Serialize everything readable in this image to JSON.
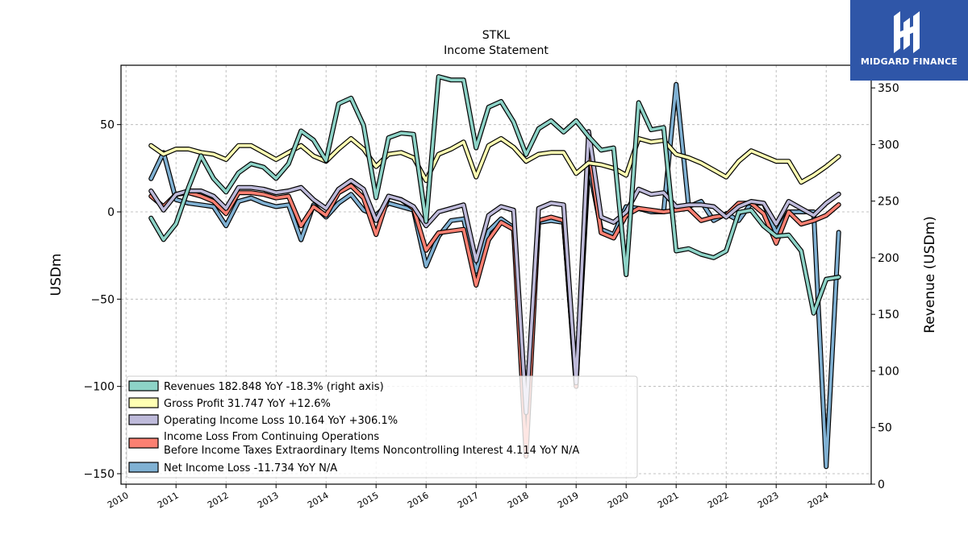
{
  "brand": {
    "name": "MIDGARD FINANCE"
  },
  "chart_data": {
    "type": "line",
    "title": "STKL",
    "subtitle": "Income Statement",
    "ylabel_left": "USDm",
    "ylabel_right": "Revenue (USDm)",
    "ylim_left": [
      -156,
      84
    ],
    "ylim_right": [
      0,
      370
    ],
    "yticks_left": [
      50,
      0,
      -50,
      -100,
      -150
    ],
    "ytick_labels_left": [
      "50",
      "0",
      "−50",
      "−100",
      "−150"
    ],
    "yticks_right": [
      0,
      50,
      100,
      150,
      200,
      250,
      300,
      350
    ],
    "ytick_labels_right": [
      "0",
      "50",
      "100",
      "150",
      "200",
      "250",
      "300",
      "350"
    ],
    "xlim": [
      2009.9,
      2024.9
    ],
    "xticks": [
      "2010",
      "2011",
      "2012",
      "2013",
      "2014",
      "2015",
      "2016",
      "2017",
      "2018",
      "2019",
      "2020",
      "2021",
      "2022",
      "2023",
      "2024"
    ],
    "grid": true,
    "legend_position": "lower-left",
    "x": [
      2010.5,
      2010.75,
      2011.0,
      2011.25,
      2011.5,
      2011.75,
      2012.0,
      2012.25,
      2012.5,
      2012.75,
      2013.0,
      2013.25,
      2013.5,
      2013.75,
      2014.0,
      2014.25,
      2014.5,
      2014.75,
      2015.0,
      2015.25,
      2015.5,
      2015.75,
      2016.0,
      2016.25,
      2016.5,
      2016.75,
      2017.0,
      2017.25,
      2017.5,
      2017.75,
      2018.0,
      2018.25,
      2018.5,
      2018.75,
      2019.0,
      2019.25,
      2019.5,
      2019.75,
      2020.0,
      2020.25,
      2020.5,
      2020.75,
      2021.0,
      2021.25,
      2021.5,
      2021.75,
      2022.0,
      2022.25,
      2022.5,
      2022.75,
      2023.0,
      2023.25,
      2023.5,
      2023.75,
      2024.0,
      2024.25
    ],
    "series": [
      {
        "name": "Revenues",
        "legend": "Revenues  182.848 YoY -18.3% (right axis)",
        "axis": "right",
        "color": "#8dd3c7",
        "values": [
          235,
          216,
          230,
          262,
          290,
          270,
          258,
          275,
          283,
          280,
          270,
          283,
          312,
          304,
          286,
          336,
          341,
          317,
          253,
          306,
          310,
          309,
          232,
          360,
          357,
          357,
          297,
          333,
          338,
          320,
          291,
          314,
          321,
          311,
          321,
          307,
          295,
          297,
          185,
          337,
          313,
          315,
          206,
          208,
          203,
          200,
          206,
          240,
          242,
          228,
          219,
          220,
          206,
          151,
          181,
          182.848
        ]
      },
      {
        "name": "Gross Profit",
        "legend": "Gross Profit  31.747 YoY +12.6%",
        "axis": "left",
        "color": "#ffffb3",
        "values": [
          38,
          33,
          36,
          36,
          34,
          33,
          30,
          38,
          38,
          34,
          30,
          34,
          38,
          32,
          29,
          36,
          42,
          36,
          26,
          33,
          34,
          31,
          18,
          33,
          36,
          40,
          20,
          38,
          42,
          37,
          29,
          33,
          34,
          34,
          22,
          28,
          27,
          25,
          21,
          42,
          40,
          41,
          33,
          31,
          28,
          24,
          20,
          29,
          35,
          32,
          29,
          29,
          17,
          21,
          26,
          31.747
        ]
      },
      {
        "name": "Operating Income Loss",
        "legend": "Operating Income Loss  10.164 YoY +306.1%",
        "axis": "left",
        "color": "#bebada",
        "values": [
          12,
          1,
          10,
          12,
          12,
          9,
          2,
          14,
          14,
          13,
          11,
          12,
          14,
          7,
          2,
          13,
          18,
          13,
          -5,
          9,
          7,
          3,
          -8,
          0,
          2,
          4,
          -28,
          -2,
          3,
          1,
          -115,
          2,
          5,
          4,
          -98,
          46,
          -3,
          -6,
          0,
          13,
          10,
          11,
          3,
          4,
          4,
          3,
          -3,
          3,
          6,
          5,
          -7,
          6,
          2,
          -2,
          5,
          10.164
        ]
      },
      {
        "name": "Income Loss From Continuing Operations Before Income Taxes Extraordinary Items Noncontrolling Interest",
        "legend": "Income Loss From Continuing Operations",
        "legend2": "Before Income Taxes Extraordinary Items Noncontrolling Interest  4.114 YoY N/A",
        "axis": "left",
        "color": "#fb8072",
        "values": [
          9,
          3,
          10,
          11,
          9,
          6,
          -1,
          11,
          11,
          10,
          8,
          9,
          -8,
          3,
          -2,
          11,
          15,
          8,
          -13,
          9,
          7,
          2,
          -22,
          -12,
          -11,
          -10,
          -42,
          -16,
          -6,
          -10,
          -140,
          -5,
          -3,
          -5,
          -100,
          36,
          -12,
          -15,
          -2,
          2,
          1,
          0,
          1,
          2,
          -5,
          -3,
          -2,
          5,
          5,
          -1,
          -18,
          0,
          -7,
          -5,
          -2,
          4.114
        ]
      },
      {
        "name": "Net Income Loss",
        "legend": "Net Income Loss  -11.734 YoY N/A",
        "axis": "left",
        "color": "#80b1d3",
        "values": [
          19,
          34,
          7,
          5,
          4,
          3,
          -8,
          6,
          8,
          5,
          3,
          4,
          -16,
          4,
          -3,
          5,
          10,
          1,
          -2,
          5,
          3,
          1,
          -31,
          -14,
          -5,
          -4,
          -34,
          -11,
          -4,
          -9,
          -118,
          -6,
          -5,
          -6,
          -98,
          27,
          -10,
          -13,
          3,
          2,
          0,
          0,
          73,
          3,
          6,
          -5,
          -1,
          -5,
          5,
          5,
          -12,
          0,
          0,
          0,
          -146,
          -11.734
        ]
      }
    ]
  }
}
